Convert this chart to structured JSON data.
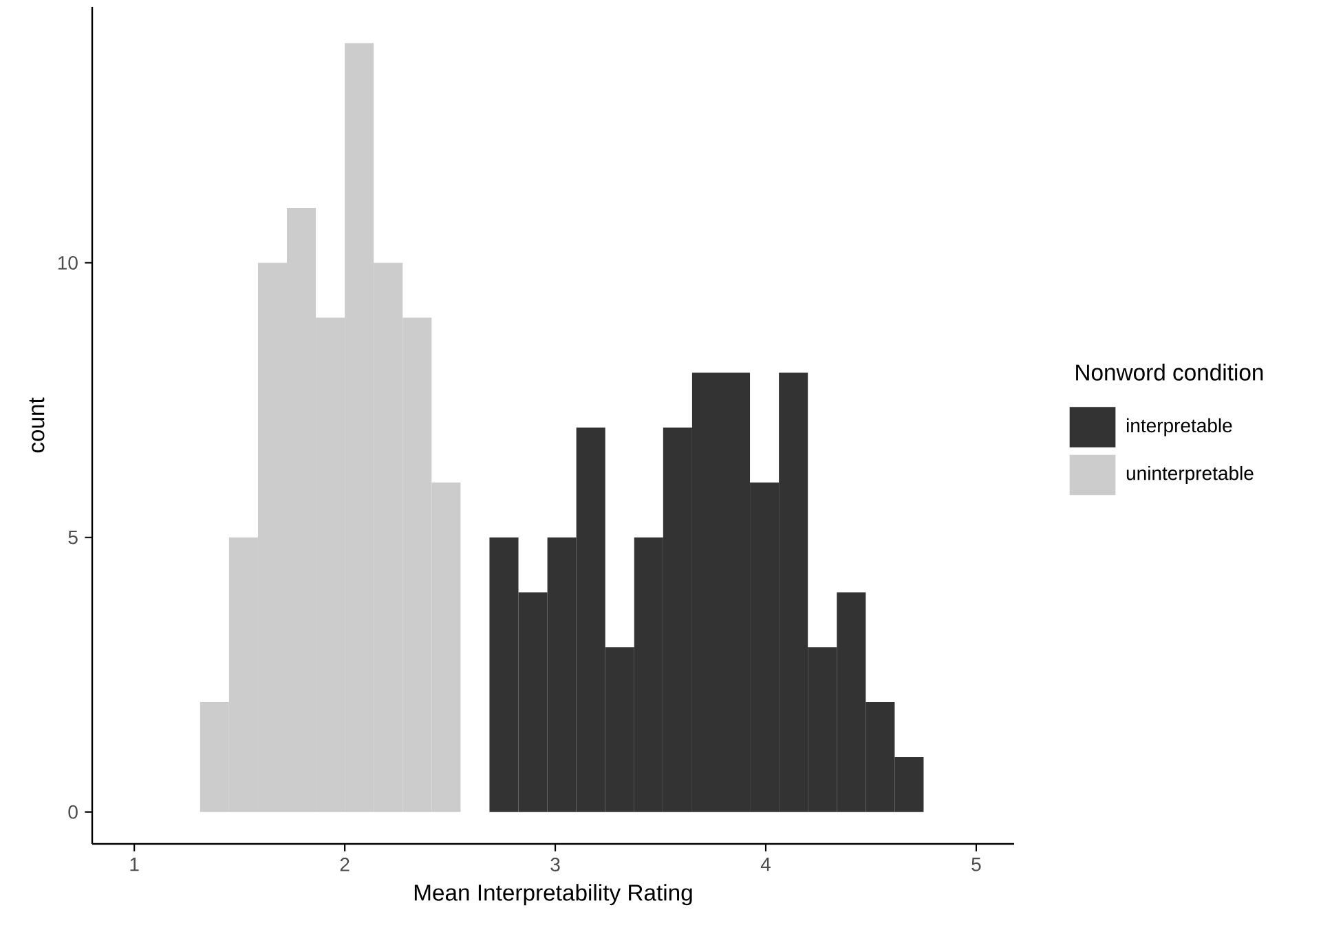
{
  "chart_data": {
    "type": "histogram",
    "xlabel": "Mean Interpretability Rating",
    "ylabel": "count",
    "legend_title": "Nonword condition",
    "legend": "right",
    "bins": [
      1.3125,
      1.45,
      1.5875,
      1.725,
      1.8625,
      2.0,
      2.1375,
      2.275,
      2.4125,
      2.55,
      2.6875,
      2.825,
      2.9625,
      3.1,
      3.2375,
      3.375,
      3.5125,
      3.65,
      3.7875,
      3.925,
      4.0625,
      4.2,
      4.3375,
      4.475,
      4.6125,
      4.75
    ],
    "series": [
      {
        "name": "interpretable",
        "color": "#333333",
        "values": [
          null,
          null,
          null,
          null,
          null,
          null,
          null,
          null,
          null,
          null,
          5,
          4,
          5,
          7,
          3,
          5,
          7,
          8,
          8,
          6,
          8,
          3,
          4,
          2,
          1
        ]
      },
      {
        "name": "uninterpretable",
        "color": "#cccccc",
        "values": [
          2,
          5,
          10,
          11,
          9,
          14,
          10,
          9,
          6,
          null,
          null,
          null,
          null,
          null,
          null,
          null,
          null,
          null,
          null,
          null,
          null,
          null,
          null,
          null,
          null
        ]
      }
    ],
    "xlim": [
      0.8,
      5.18
    ],
    "ylim": [
      -0.58,
      14.66
    ],
    "xticks": [
      1,
      2,
      3,
      4,
      5
    ],
    "yticks": [
      0,
      5,
      10
    ]
  }
}
